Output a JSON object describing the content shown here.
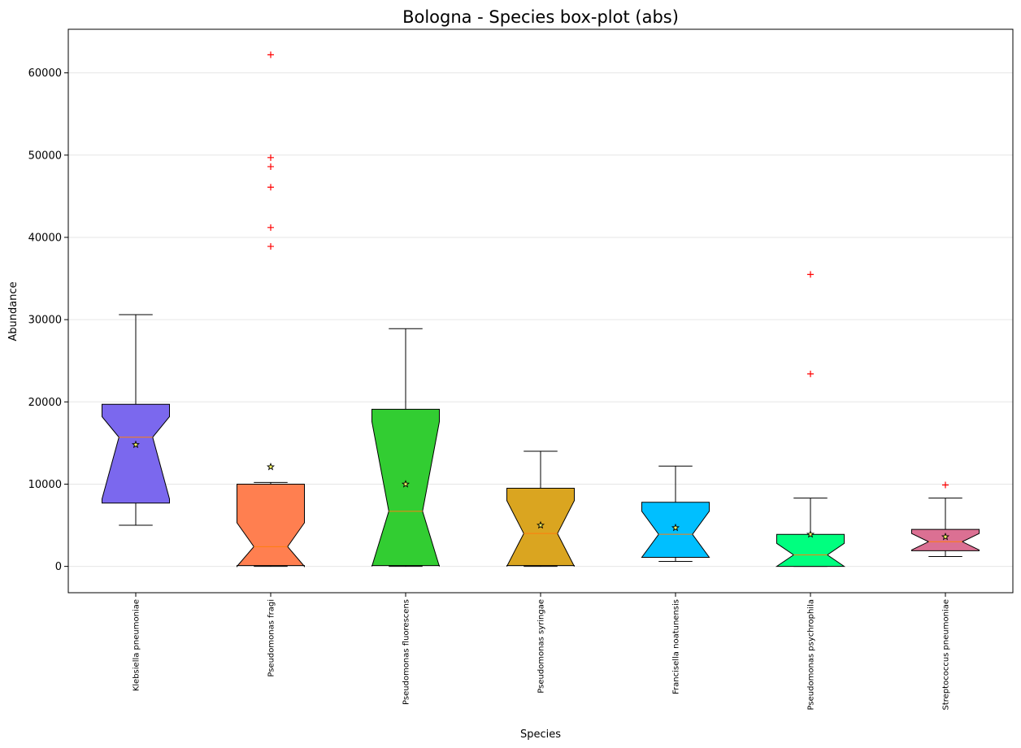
{
  "chart_data": {
    "type": "boxplot",
    "title": "Bologna - Species box-plot (abs)",
    "xlabel": "Species",
    "ylabel": "Abundance",
    "ylim": [
      -3200,
      65300
    ],
    "yticks": [
      0,
      10000,
      20000,
      30000,
      40000,
      50000,
      60000
    ],
    "ytick_labels": [
      "0",
      "10000",
      "20000",
      "30000",
      "40000",
      "50000",
      "60000"
    ],
    "grid": "horizontal",
    "notched": true,
    "mean_marker": "star",
    "outlier_marker": "+",
    "outlier_color": "#ff0000",
    "median_color": "#ff7f0e",
    "categories": [
      "Klebsiella pneumoniae",
      "Pseudomonas fragi",
      "Pseudomonas fluorescens",
      "Pseudomonas syringae",
      "Francisella noatunensis",
      "Pseudomonas psychrophila",
      "Streptococcus pneumoniae"
    ],
    "series": [
      {
        "label": "Klebsiella pneumoniae",
        "color": "#7b68ee",
        "whisker_low": 5000,
        "q1": 7700,
        "median": 15700,
        "q3": 19700,
        "whisker_high": 30600,
        "notch_low": 8200,
        "notch_high": 18200,
        "mean": 14800,
        "outliers": []
      },
      {
        "label": "Pseudomonas fragi",
        "color": "#ff7f50",
        "whisker_low": 0,
        "q1": 100,
        "median": 2400,
        "q3": 10000,
        "whisker_high": 10200,
        "notch_low": 0,
        "notch_high": 5300,
        "mean": 12100,
        "outliers": [
          62200,
          49700,
          48600,
          46100,
          41200,
          38900
        ]
      },
      {
        "label": "Pseudomonas fluorescens",
        "color": "#32cd32",
        "whisker_low": 0,
        "q1": 100,
        "median": 6700,
        "q3": 19100,
        "whisker_high": 28900,
        "notch_low": 0,
        "notch_high": 17600,
        "mean": 10000,
        "outliers": []
      },
      {
        "label": "Pseudomonas syringae",
        "color": "#daa520",
        "whisker_low": 0,
        "q1": 100,
        "median": 4000,
        "q3": 9500,
        "whisker_high": 14000,
        "notch_low": 0,
        "notch_high": 8000,
        "mean": 5000,
        "outliers": []
      },
      {
        "label": "Francisella noatunensis",
        "color": "#00bfff",
        "whisker_low": 600,
        "q1": 1100,
        "median": 3900,
        "q3": 7800,
        "whisker_high": 12200,
        "notch_low": 1100,
        "notch_high": 6700,
        "mean": 4700,
        "outliers": []
      },
      {
        "label": "Pseudomonas psychrophila",
        "color": "#00ff7f",
        "whisker_low": 0,
        "q1": 0,
        "median": 1400,
        "q3": 3900,
        "whisker_high": 8300,
        "notch_low": 0,
        "notch_high": 2800,
        "mean": 3900,
        "outliers": [
          35500,
          23400
        ]
      },
      {
        "label": "Streptococcus pneumoniae",
        "color": "#db7093",
        "whisker_low": 1200,
        "q1": 1900,
        "median": 3000,
        "q3": 4500,
        "whisker_high": 8300,
        "notch_low": 2000,
        "notch_high": 4000,
        "mean": 3600,
        "outliers": [
          9900
        ]
      }
    ]
  }
}
